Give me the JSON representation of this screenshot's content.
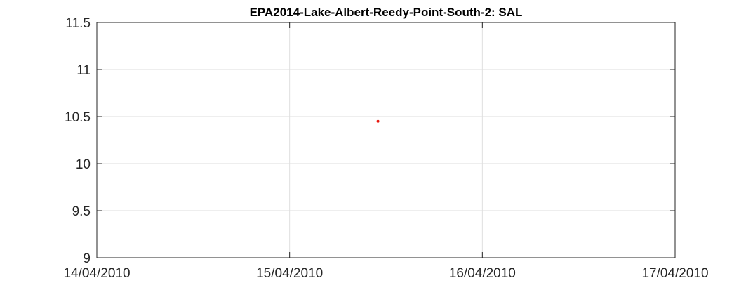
{
  "chart_data": {
    "type": "scatter",
    "title": "EPA2014-Lake-Albert-Reedy-Point-South-2: SAL",
    "xlabel": "",
    "ylabel": "",
    "x_axis_type": "date",
    "xlim": [
      "2010-04-14",
      "2010-04-17"
    ],
    "ylim": [
      9,
      11.5
    ],
    "x_ticks": [
      "2010-04-14",
      "2010-04-15",
      "2010-04-16",
      "2010-04-17"
    ],
    "x_tick_labels": [
      "14/04/2010",
      "15/04/2010",
      "16/04/2010",
      "17/04/2010"
    ],
    "y_ticks": [
      9,
      9.5,
      10,
      10.5,
      11,
      11.5
    ],
    "y_tick_labels": [
      "9",
      "9.5",
      "10",
      "10.5",
      "11",
      "11.5"
    ],
    "grid": true,
    "series": [
      {
        "color": "#e8160c",
        "points": [
          {
            "x": "2010-04-15 11:00",
            "y": 10.45
          }
        ]
      }
    ]
  }
}
